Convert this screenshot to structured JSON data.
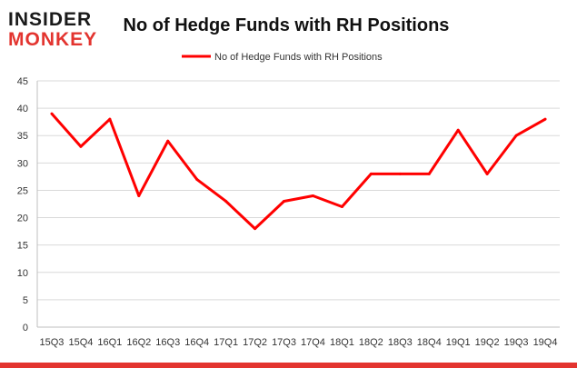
{
  "logo": {
    "line1": "INSIDER",
    "line2": "MONKEY"
  },
  "colors": {
    "series": "#ff0000",
    "bottom_bar": "#e3342f",
    "grid": "#d9d9d9"
  },
  "chart_data": {
    "type": "line",
    "title": "No of Hedge Funds with RH Positions",
    "xlabel": "",
    "ylabel": "",
    "legend_position": "top-center",
    "grid": true,
    "ylim": [
      0,
      45
    ],
    "yticks": [
      0,
      5,
      10,
      15,
      20,
      25,
      30,
      35,
      40,
      45
    ],
    "categories": [
      "15Q3",
      "15Q4",
      "16Q1",
      "16Q2",
      "16Q3",
      "16Q4",
      "17Q1",
      "17Q2",
      "17Q3",
      "17Q4",
      "18Q1",
      "18Q2",
      "18Q3",
      "18Q4",
      "19Q1",
      "19Q2",
      "19Q3",
      "19Q4"
    ],
    "series": [
      {
        "name": "No of Hedge Funds with RH Positions",
        "color": "#ff0000",
        "values": [
          39,
          33,
          38,
          24,
          34,
          27,
          23,
          18,
          23,
          24,
          22,
          28,
          28,
          28,
          36,
          28,
          35,
          38
        ]
      }
    ]
  }
}
